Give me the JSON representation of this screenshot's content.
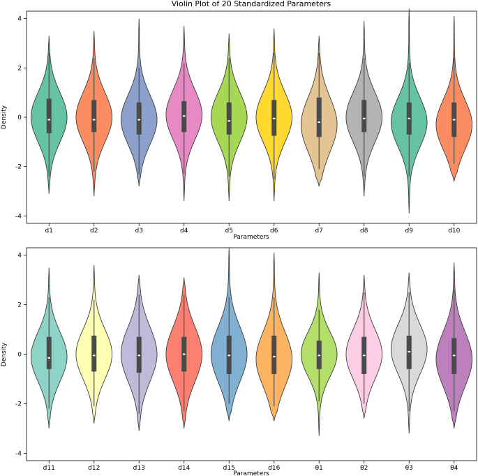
{
  "chart_data": [
    {
      "type": "violin",
      "title": "Violin Plot of 20 Standardized Parameters",
      "xlabel": "Parameters",
      "ylabel": "Density",
      "ylim": [
        -4.3,
        4.3
      ],
      "yticks": [
        -4,
        -2,
        0,
        2,
        4
      ],
      "grid": false,
      "series": [
        {
          "name": "d1",
          "color": "#66c2a5",
          "min": -3.1,
          "max": 3.3,
          "q1": -0.65,
          "median": -0.1,
          "q3": 0.75,
          "wlo": -2.4,
          "whi": 2.6,
          "mode": 0.0,
          "spread": 1.0
        },
        {
          "name": "d2",
          "color": "#fc8d62",
          "min": -3.2,
          "max": 3.5,
          "q1": -0.6,
          "median": -0.1,
          "q3": 0.7,
          "wlo": -2.2,
          "whi": 2.4,
          "mode": 0.0,
          "spread": 1.0
        },
        {
          "name": "d3",
          "color": "#8da0cb",
          "min": -2.8,
          "max": 4.0,
          "q1": -0.7,
          "median": -0.1,
          "q3": 0.6,
          "wlo": -2.3,
          "whi": 2.0,
          "mode": -0.1,
          "spread": 1.0
        },
        {
          "name": "d4",
          "color": "#e78ac3",
          "min": -3.4,
          "max": 3.7,
          "q1": -0.6,
          "median": 0.05,
          "q3": 0.65,
          "wlo": -2.3,
          "whi": 2.2,
          "mode": 0.1,
          "spread": 1.0
        },
        {
          "name": "d5",
          "color": "#a6d854",
          "min": -3.4,
          "max": 3.4,
          "q1": -0.7,
          "median": -0.15,
          "q3": 0.6,
          "wlo": -2.4,
          "whi": 2.4,
          "mode": 0.0,
          "spread": 1.0
        },
        {
          "name": "d6",
          "color": "#ffd92f",
          "min": -3.4,
          "max": 3.6,
          "q1": -0.75,
          "median": -0.05,
          "q3": 0.7,
          "wlo": -2.5,
          "whi": 2.6,
          "mode": 0.0,
          "spread": 1.0
        },
        {
          "name": "d7",
          "color": "#e5c494",
          "min": -2.8,
          "max": 3.3,
          "q1": -0.8,
          "median": -0.2,
          "q3": 0.8,
          "wlo": -2.1,
          "whi": 2.6,
          "mode": -0.3,
          "spread": 1.1
        },
        {
          "name": "d8",
          "color": "#b3b3b3",
          "min": -3.2,
          "max": 3.9,
          "q1": -0.6,
          "median": -0.05,
          "q3": 0.7,
          "wlo": -2.4,
          "whi": 2.4,
          "mode": 0.0,
          "spread": 1.0
        },
        {
          "name": "d9",
          "color": "#66c2a5",
          "min": -3.9,
          "max": 4.4,
          "q1": -0.7,
          "median": -0.05,
          "q3": 0.6,
          "wlo": -2.4,
          "whi": 2.2,
          "mode": -0.2,
          "spread": 1.0
        },
        {
          "name": "d10",
          "color": "#fc8d62",
          "min": -2.6,
          "max": 4.1,
          "q1": -0.8,
          "median": -0.1,
          "q3": 0.6,
          "wlo": -1.9,
          "whi": 2.4,
          "mode": -0.3,
          "spread": 1.0
        }
      ]
    },
    {
      "type": "violin",
      "title": "",
      "xlabel": "Parameters",
      "ylabel": "Density",
      "ylim": [
        -4.3,
        4.3
      ],
      "yticks": [
        -4,
        -2,
        0,
        2,
        4
      ],
      "grid": false,
      "series": [
        {
          "name": "d11",
          "color": "#8dd3c7",
          "min": -3.0,
          "max": 3.5,
          "q1": -0.6,
          "median": -0.15,
          "q3": 0.7,
          "wlo": -2.2,
          "whi": 2.3,
          "mode": -0.1,
          "spread": 1.0
        },
        {
          "name": "d12",
          "color": "#ffffb3",
          "min": -2.8,
          "max": 3.6,
          "q1": -0.7,
          "median": -0.05,
          "q3": 0.75,
          "wlo": -2.1,
          "whi": 2.2,
          "mode": 0.0,
          "spread": 1.0
        },
        {
          "name": "d13",
          "color": "#bebada",
          "min": -3.1,
          "max": 3.2,
          "q1": -0.75,
          "median": -0.05,
          "q3": 0.7,
          "wlo": -2.4,
          "whi": 2.4,
          "mode": 0.0,
          "spread": 1.1
        },
        {
          "name": "d14",
          "color": "#fb8072",
          "min": -3.0,
          "max": 3.1,
          "q1": -0.7,
          "median": 0.0,
          "q3": 0.7,
          "wlo": -2.3,
          "whi": 2.4,
          "mode": 0.0,
          "spread": 1.1
        },
        {
          "name": "d15",
          "color": "#80b1d3",
          "min": -2.7,
          "max": 4.3,
          "q1": -0.8,
          "median": -0.05,
          "q3": 0.75,
          "wlo": -2.0,
          "whi": 2.3,
          "mode": 0.0,
          "spread": 1.1
        },
        {
          "name": "d16",
          "color": "#fdb462",
          "min": -2.7,
          "max": 4.1,
          "q1": -0.8,
          "median": -0.1,
          "q3": 0.75,
          "wlo": -2.1,
          "whi": 2.3,
          "mode": -0.2,
          "spread": 1.1
        },
        {
          "name": "θ1",
          "color": "#b3de69",
          "min": -3.3,
          "max": 3.3,
          "q1": -0.6,
          "median": -0.05,
          "q3": 0.55,
          "wlo": -1.9,
          "whi": 1.8,
          "mode": 0.0,
          "spread": 0.9
        },
        {
          "name": "θ2",
          "color": "#fccde5",
          "min": -2.6,
          "max": 3.2,
          "q1": -0.8,
          "median": -0.05,
          "q3": 0.7,
          "wlo": -2.0,
          "whi": 2.5,
          "mode": 0.0,
          "spread": 1.0
        },
        {
          "name": "θ3",
          "color": "#d9d9d9",
          "min": -3.2,
          "max": 3.3,
          "q1": -0.6,
          "median": 0.1,
          "q3": 0.75,
          "wlo": -2.3,
          "whi": 2.5,
          "mode": 0.2,
          "spread": 1.0
        },
        {
          "name": "θ4",
          "color": "#bc80bd",
          "min": -3.0,
          "max": 3.7,
          "q1": -0.8,
          "median": -0.05,
          "q3": 0.65,
          "wlo": -2.3,
          "whi": 2.6,
          "mode": -0.2,
          "spread": 1.1
        }
      ]
    }
  ]
}
